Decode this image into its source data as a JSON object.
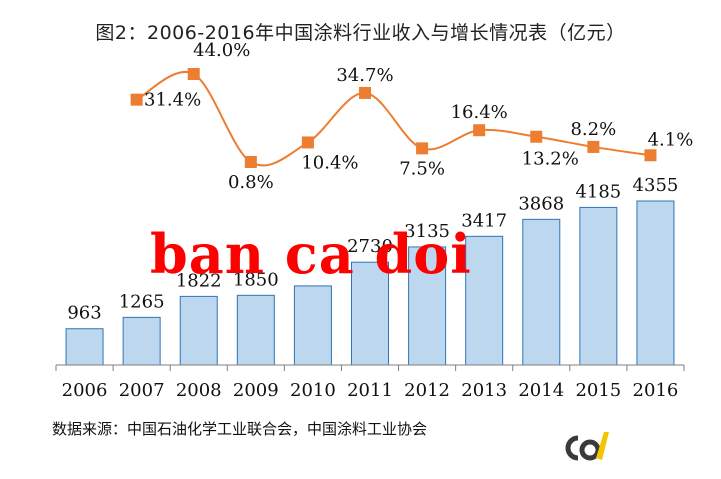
{
  "title": "图2：2006-2016年中国涂料行业收入与增长情况表（亿元）",
  "source": "数据来源：中国石油化学工业联合会，中国涂料工业协会",
  "watermark": "ban ca doi",
  "colors": {
    "bar_fill": "#bdd7ee",
    "bar_stroke": "#2e75b6",
    "line": "#ed7d31",
    "marker": "#ed7d31"
  },
  "chart_data": {
    "type": "bar+line",
    "categories": [
      "2006",
      "2007",
      "2008",
      "2009",
      "2010",
      "2011",
      "2012",
      "2013",
      "2014",
      "2015",
      "2016"
    ],
    "bar_values": [
      963,
      1265,
      1822,
      1850,
      2100,
      2730,
      3135,
      3417,
      3868,
      4185,
      4355
    ],
    "bar_labels": [
      "963",
      "1265",
      "1822",
      "1850",
      "",
      "2730",
      "3135",
      "3417",
      "3868",
      "4185",
      "4355"
    ],
    "growth_years": [
      "2007",
      "2008",
      "2009",
      "2010",
      "2011",
      "2012",
      "2013",
      "2014",
      "2015",
      "2016"
    ],
    "growth_values": [
      31.4,
      44.0,
      0.8,
      10.4,
      34.7,
      7.5,
      16.4,
      13.2,
      8.2,
      4.1
    ],
    "growth_labels": [
      "31.4%",
      "44.0%",
      "0.8%",
      "10.4%",
      "34.7%",
      "7.5%",
      "16.4%",
      "13.2%",
      "8.2%",
      "4.1%"
    ],
    "legend": "none",
    "grid": false
  }
}
